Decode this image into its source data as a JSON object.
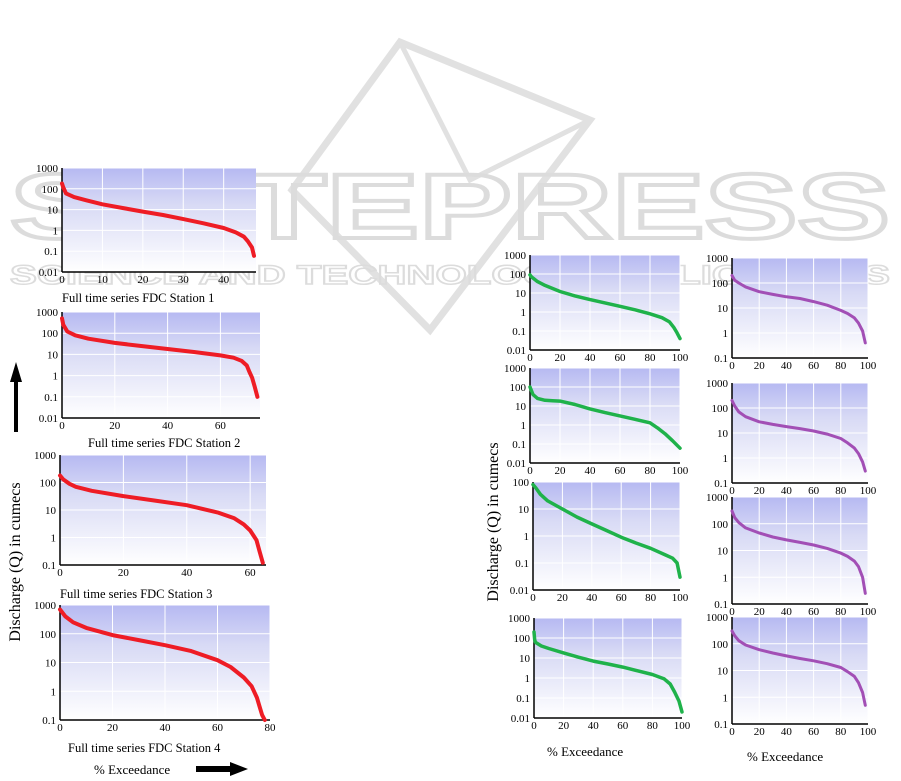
{
  "watermark": {
    "title": "SCITEPRESS",
    "subtitle": "SCIENCE AND TECHNOLOGY PUBLICATIONS"
  },
  "left_ylabel": "Discharge (Q) in cumecs",
  "left_xlabel": "% Exceedance",
  "right_ylabel": "Discharge (Q) in cumecs",
  "right_xlabel_1": "% Exceedance",
  "right_xlabel_2": "% Exceedance",
  "chart_data": [
    {
      "id": "s1",
      "type": "line",
      "caption": "Full time series FDC Station 1",
      "color": "#ee1c25",
      "xlim": [
        0,
        48
      ],
      "xticks": [
        0,
        10,
        20,
        30,
        40
      ],
      "ylog": true,
      "ylim": [
        0.01,
        1000
      ],
      "yticks": [
        0.01,
        0.1,
        1,
        10,
        100,
        1000
      ],
      "ytick_labels": [
        "0.01",
        "0.1",
        "1",
        "10",
        "100",
        "1000"
      ],
      "series": [
        {
          "x": [
            0,
            0.3,
            1,
            3,
            6,
            10,
            15,
            20,
            25,
            30,
            35,
            40,
            43,
            45,
            46,
            47,
            47.5
          ],
          "y": [
            180,
            120,
            60,
            40,
            28,
            18,
            12,
            8,
            5.5,
            3.5,
            2.2,
            1.3,
            0.8,
            0.5,
            0.3,
            0.15,
            0.06
          ]
        }
      ]
    },
    {
      "id": "s2",
      "type": "line",
      "caption": "Full time series FDC Station 2",
      "color": "#ee1c25",
      "xlim": [
        0,
        75
      ],
      "xticks": [
        0,
        20,
        40,
        60
      ],
      "ylog": true,
      "ylim": [
        0.01,
        1000
      ],
      "yticks": [
        0.01,
        0.1,
        1,
        10,
        100,
        1000
      ],
      "ytick_labels": [
        "0.01",
        "0.1",
        "1",
        "10",
        "100",
        "1000"
      ],
      "series": [
        {
          "x": [
            0,
            0.5,
            2,
            5,
            10,
            20,
            30,
            40,
            50,
            60,
            65,
            68,
            70,
            71,
            72,
            73,
            74
          ],
          "y": [
            500,
            250,
            120,
            80,
            55,
            35,
            25,
            18,
            13,
            9,
            7,
            5,
            3,
            1.5,
            0.8,
            0.3,
            0.1
          ]
        }
      ]
    },
    {
      "id": "s3",
      "type": "line",
      "caption": "Full time series FDC Station 3",
      "color": "#ee1c25",
      "xlim": [
        0,
        65
      ],
      "xticks": [
        0,
        20,
        40,
        60
      ],
      "ylog": true,
      "ylim": [
        0.1,
        1000
      ],
      "yticks": [
        0.1,
        1,
        10,
        100,
        1000
      ],
      "ytick_labels": [
        "0.1",
        "1",
        "10",
        "100",
        "1000"
      ],
      "series": [
        {
          "x": [
            0,
            1,
            3,
            5,
            10,
            20,
            30,
            40,
            50,
            55,
            58,
            60,
            62,
            63,
            64
          ],
          "y": [
            180,
            130,
            90,
            70,
            50,
            32,
            22,
            15,
            8,
            5,
            3,
            1.8,
            0.8,
            0.3,
            0.12
          ]
        }
      ]
    },
    {
      "id": "s4",
      "type": "line",
      "caption": "Full time series FDC Station 4",
      "color": "#ee1c25",
      "xlim": [
        0,
        80
      ],
      "xticks": [
        0,
        20,
        40,
        60,
        80
      ],
      "ylog": true,
      "ylim": [
        0.1,
        1000
      ],
      "yticks": [
        0.1,
        1,
        10,
        100,
        1000
      ],
      "ytick_labels": [
        "0.1",
        "1",
        "10",
        "100",
        "1000"
      ],
      "series": [
        {
          "x": [
            0,
            2,
            5,
            10,
            20,
            30,
            40,
            50,
            60,
            65,
            70,
            73,
            75,
            76,
            77,
            78
          ],
          "y": [
            700,
            400,
            250,
            160,
            90,
            60,
            40,
            25,
            12,
            7,
            3,
            1.5,
            0.6,
            0.3,
            0.15,
            0.1
          ]
        }
      ]
    },
    {
      "id": "g1",
      "type": "line",
      "color": "#1fb24a",
      "xlim": [
        0,
        100
      ],
      "xticks": [
        0,
        20,
        40,
        60,
        80,
        100
      ],
      "ylog": true,
      "ylim": [
        0.01,
        1000
      ],
      "yticks": [
        0.01,
        0.1,
        1,
        10,
        100,
        1000
      ],
      "ytick_labels": [
        "0.01",
        "0.1",
        "1",
        "10",
        "100",
        "1000"
      ],
      "series": [
        {
          "x": [
            0,
            1,
            5,
            10,
            20,
            30,
            40,
            50,
            60,
            70,
            80,
            88,
            93,
            96,
            98,
            100
          ],
          "y": [
            90,
            70,
            40,
            25,
            12,
            7,
            4.5,
            3,
            2,
            1.3,
            0.8,
            0.5,
            0.3,
            0.15,
            0.08,
            0.04
          ]
        }
      ]
    },
    {
      "id": "g2",
      "type": "line",
      "color": "#1fb24a",
      "xlim": [
        0,
        100
      ],
      "xticks": [
        0,
        20,
        40,
        60,
        80,
        100
      ],
      "ylog": true,
      "ylim": [
        0.01,
        1000
      ],
      "yticks": [
        0.01,
        0.1,
        1,
        10,
        100,
        1000
      ],
      "ytick_labels": [
        "0.01",
        "0.1",
        "1",
        "10",
        "100",
        "1000"
      ],
      "series": [
        {
          "x": [
            0,
            2,
            5,
            10,
            15,
            20,
            30,
            40,
            50,
            60,
            70,
            80,
            85,
            90,
            95,
            100
          ],
          "y": [
            100,
            40,
            25,
            20,
            19,
            18,
            12,
            7,
            4.5,
            3,
            2,
            1.3,
            0.7,
            0.35,
            0.15,
            0.06
          ]
        }
      ]
    },
    {
      "id": "g3",
      "type": "line",
      "color": "#1fb24a",
      "xlim": [
        0,
        100
      ],
      "xticks": [
        0,
        20,
        40,
        60,
        80,
        100
      ],
      "ylog": true,
      "ylim": [
        0.01,
        100
      ],
      "yticks": [
        0.01,
        0.1,
        1,
        10,
        100
      ],
      "ytick_labels": [
        "0.01",
        "0.1",
        "1",
        "10",
        "100"
      ],
      "series": [
        {
          "x": [
            0,
            2,
            5,
            10,
            20,
            30,
            40,
            50,
            60,
            70,
            80,
            90,
            95,
            98,
            100
          ],
          "y": [
            80,
            60,
            35,
            20,
            10,
            5,
            2.8,
            1.6,
            0.9,
            0.55,
            0.35,
            0.2,
            0.15,
            0.1,
            0.03
          ]
        }
      ]
    },
    {
      "id": "g4",
      "type": "line",
      "color": "#1fb24a",
      "xlim": [
        0,
        100
      ],
      "xticks": [
        0,
        20,
        40,
        60,
        80,
        100
      ],
      "ylog": true,
      "ylim": [
        0.01,
        1000
      ],
      "yticks": [
        0.01,
        0.1,
        1,
        10,
        100,
        1000
      ],
      "ytick_labels": [
        "0.01",
        "0.1",
        "1",
        "10",
        "100",
        "1000"
      ],
      "series": [
        {
          "x": [
            0,
            0.5,
            1,
            5,
            10,
            20,
            30,
            40,
            50,
            60,
            70,
            80,
            88,
            92,
            95,
            98,
            100
          ],
          "y": [
            200,
            80,
            60,
            40,
            30,
            18,
            11,
            7,
            5,
            3.5,
            2.3,
            1.5,
            0.9,
            0.5,
            0.2,
            0.07,
            0.02
          ]
        }
      ]
    },
    {
      "id": "p1",
      "type": "line",
      "color": "#a24fb5",
      "xlim": [
        0,
        100
      ],
      "xticks": [
        0,
        20,
        40,
        60,
        80,
        100
      ],
      "ylog": true,
      "ylim": [
        0.1,
        1000
      ],
      "yticks": [
        0.1,
        1,
        10,
        100,
        1000
      ],
      "ytick_labels": [
        "0.1",
        "1",
        "10",
        "100",
        "1000"
      ],
      "series": [
        {
          "x": [
            0,
            2,
            5,
            10,
            20,
            30,
            40,
            50,
            60,
            70,
            80,
            85,
            90,
            93,
            96,
            98
          ],
          "y": [
            200,
            130,
            100,
            70,
            45,
            35,
            28,
            24,
            18,
            13,
            8,
            6,
            4,
            2.5,
            1.2,
            0.4
          ]
        }
      ]
    },
    {
      "id": "p2",
      "type": "line",
      "color": "#a24fb5",
      "xlim": [
        0,
        100
      ],
      "xticks": [
        0,
        20,
        40,
        60,
        80,
        100
      ],
      "ylog": true,
      "ylim": [
        0.1,
        1000
      ],
      "yticks": [
        0.1,
        1,
        10,
        100,
        1000
      ],
      "ytick_labels": [
        "0.1",
        "1",
        "10",
        "100",
        "1000"
      ],
      "series": [
        {
          "x": [
            0,
            2,
            5,
            10,
            20,
            30,
            40,
            50,
            60,
            70,
            80,
            85,
            90,
            93,
            96,
            98
          ],
          "y": [
            200,
            120,
            70,
            45,
            28,
            22,
            18,
            15,
            12,
            9,
            6,
            4,
            2.5,
            1.5,
            0.7,
            0.3
          ]
        }
      ]
    },
    {
      "id": "p3",
      "type": "line",
      "color": "#a24fb5",
      "xlim": [
        0,
        100
      ],
      "xticks": [
        0,
        20,
        40,
        60,
        80,
        100
      ],
      "ylog": true,
      "ylim": [
        0.1,
        1000
      ],
      "yticks": [
        0.1,
        1,
        10,
        100,
        1000
      ],
      "ytick_labels": [
        "0.1",
        "1",
        "10",
        "100",
        "1000"
      ],
      "series": [
        {
          "x": [
            0,
            2,
            5,
            10,
            20,
            30,
            40,
            50,
            60,
            70,
            80,
            85,
            90,
            93,
            96,
            98
          ],
          "y": [
            300,
            170,
            110,
            70,
            45,
            32,
            25,
            20,
            16,
            12,
            8,
            6,
            4,
            2.5,
            1,
            0.25
          ]
        }
      ]
    },
    {
      "id": "p4",
      "type": "line",
      "color": "#a24fb5",
      "xlim": [
        0,
        100
      ],
      "xticks": [
        0,
        20,
        40,
        60,
        80,
        100
      ],
      "ylog": true,
      "ylim": [
        0.1,
        1000
      ],
      "yticks": [
        0.1,
        1,
        10,
        100,
        1000
      ],
      "ytick_labels": [
        "0.1",
        "1",
        "10",
        "100",
        "1000"
      ],
      "series": [
        {
          "x": [
            0,
            2,
            5,
            10,
            20,
            30,
            40,
            50,
            60,
            70,
            80,
            85,
            90,
            93,
            96,
            98
          ],
          "y": [
            300,
            200,
            130,
            90,
            60,
            45,
            35,
            28,
            23,
            18,
            13,
            9,
            6,
            3.5,
            1.5,
            0.5
          ]
        }
      ]
    }
  ]
}
